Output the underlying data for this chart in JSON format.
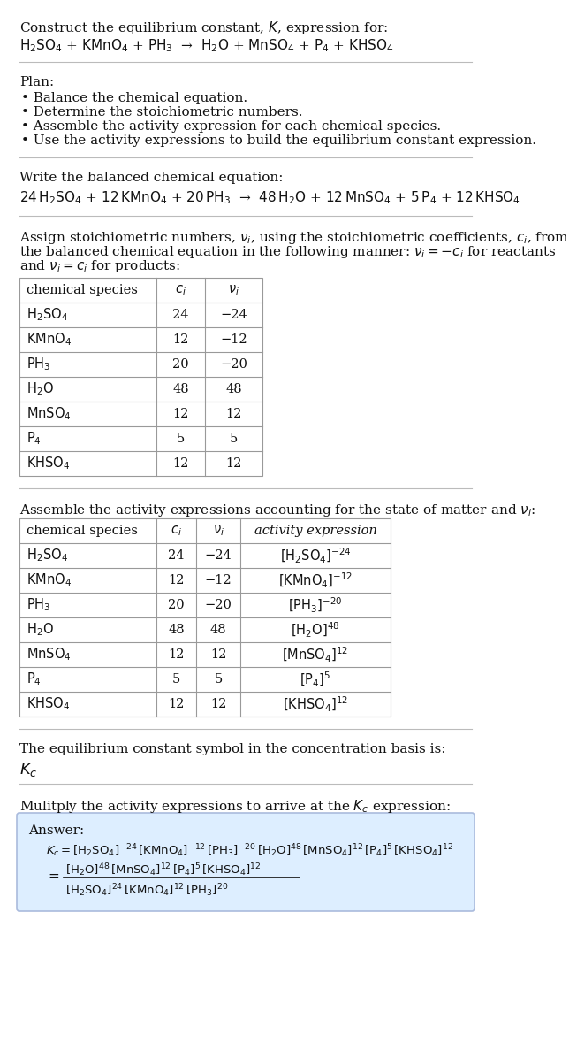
{
  "title_line1": "Construct the equilibrium constant, $K$, expression for:",
  "title_line2": "$\\mathrm{H_2SO_4}$ + $\\mathrm{KMnO_4}$ + $\\mathrm{PH_3}$  →  $\\mathrm{H_2O}$ + $\\mathrm{MnSO_4}$ + $\\mathrm{P_4}$ + $\\mathrm{KHSO_4}$",
  "plan_header": "Plan:",
  "plan_items": [
    "• Balance the chemical equation.",
    "• Determine the stoichiometric numbers.",
    "• Assemble the activity expression for each chemical species.",
    "• Use the activity expressions to build the equilibrium constant expression."
  ],
  "balanced_header": "Write the balanced chemical equation:",
  "balanced_eq": "$24\\,\\mathrm{H_2SO_4}$ + $12\\,\\mathrm{KMnO_4}$ + $20\\,\\mathrm{PH_3}$  →  $48\\,\\mathrm{H_2O}$ + $12\\,\\mathrm{MnSO_4}$ + $5\\,\\mathrm{P_4}$ + $12\\,\\mathrm{KHSO_4}$",
  "stoich_header_line1": "Assign stoichiometric numbers, $\\nu_i$, using the stoichiometric coefficients, $c_i$, from",
  "stoich_header_line2": "the balanced chemical equation in the following manner: $\\nu_i = -c_i$ for reactants",
  "stoich_header_line3": "and $\\nu_i = c_i$ for products:",
  "table1_headers": [
    "chemical species",
    "$c_i$",
    "$\\nu_i$"
  ],
  "table1_rows": [
    [
      "$\\mathrm{H_2SO_4}$",
      "24",
      "−24"
    ],
    [
      "$\\mathrm{KMnO_4}$",
      "12",
      "−12"
    ],
    [
      "$\\mathrm{PH_3}$",
      "20",
      "−20"
    ],
    [
      "$\\mathrm{H_2O}$",
      "48",
      "48"
    ],
    [
      "$\\mathrm{MnSO_4}$",
      "12",
      "12"
    ],
    [
      "$\\mathrm{P_4}$",
      "5",
      "5"
    ],
    [
      "$\\mathrm{KHSO_4}$",
      "12",
      "12"
    ]
  ],
  "activity_header": "Assemble the activity expressions accounting for the state of matter and $\\nu_i$:",
  "table2_headers": [
    "chemical species",
    "$c_i$",
    "$\\nu_i$",
    "activity expression"
  ],
  "table2_rows": [
    [
      "$\\mathrm{H_2SO_4}$",
      "24",
      "−24",
      "$[\\mathrm{H_2SO_4}]^{-24}$"
    ],
    [
      "$\\mathrm{KMnO_4}$",
      "12",
      "−12",
      "$[\\mathrm{KMnO_4}]^{-12}$"
    ],
    [
      "$\\mathrm{PH_3}$",
      "20",
      "−20",
      "$[\\mathrm{PH_3}]^{-20}$"
    ],
    [
      "$\\mathrm{H_2O}$",
      "48",
      "48",
      "$[\\mathrm{H_2O}]^{48}$"
    ],
    [
      "$\\mathrm{MnSO_4}$",
      "12",
      "12",
      "$[\\mathrm{MnSO_4}]^{12}$"
    ],
    [
      "$\\mathrm{P_4}$",
      "5",
      "5",
      "$[\\mathrm{P_4}]^{5}$"
    ],
    [
      "$\\mathrm{KHSO_4}$",
      "12",
      "12",
      "$[\\mathrm{KHSO_4}]^{12}$"
    ]
  ],
  "kc_header": "The equilibrium constant symbol in the concentration basis is:",
  "kc_symbol": "$K_c$",
  "multiply_header": "Mulitply the activity expressions to arrive at the $K_c$ expression:",
  "answer_label": "Answer:",
  "answer_line1": "$K_c = [\\mathrm{H_2SO_4}]^{-24}\\,[\\mathrm{KMnO_4}]^{-12}\\,[\\mathrm{PH_3}]^{-20}\\,[\\mathrm{H_2O}]^{48}\\,[\\mathrm{MnSO_4}]^{12}\\,[\\mathrm{P_4}]^{5}\\,[\\mathrm{KHSO_4}]^{12}$",
  "answer_line2_num": "$[\\mathrm{H_2O}]^{48}\\,[\\mathrm{MnSO_4}]^{12}\\,[\\mathrm{P_4}]^{5}\\,[\\mathrm{KHSO_4}]^{12}$",
  "answer_line2_den": "$[\\mathrm{H_2SO_4}]^{24}\\,[\\mathrm{KMnO_4}]^{12}\\,[\\mathrm{PH_3}]^{20}$",
  "bg_color": "#ffffff",
  "table_border_color": "#999999",
  "answer_box_facecolor": "#ddeeff",
  "answer_box_edgecolor": "#aabbdd",
  "text_color": "#111111",
  "separator_color": "#bbbbbb"
}
